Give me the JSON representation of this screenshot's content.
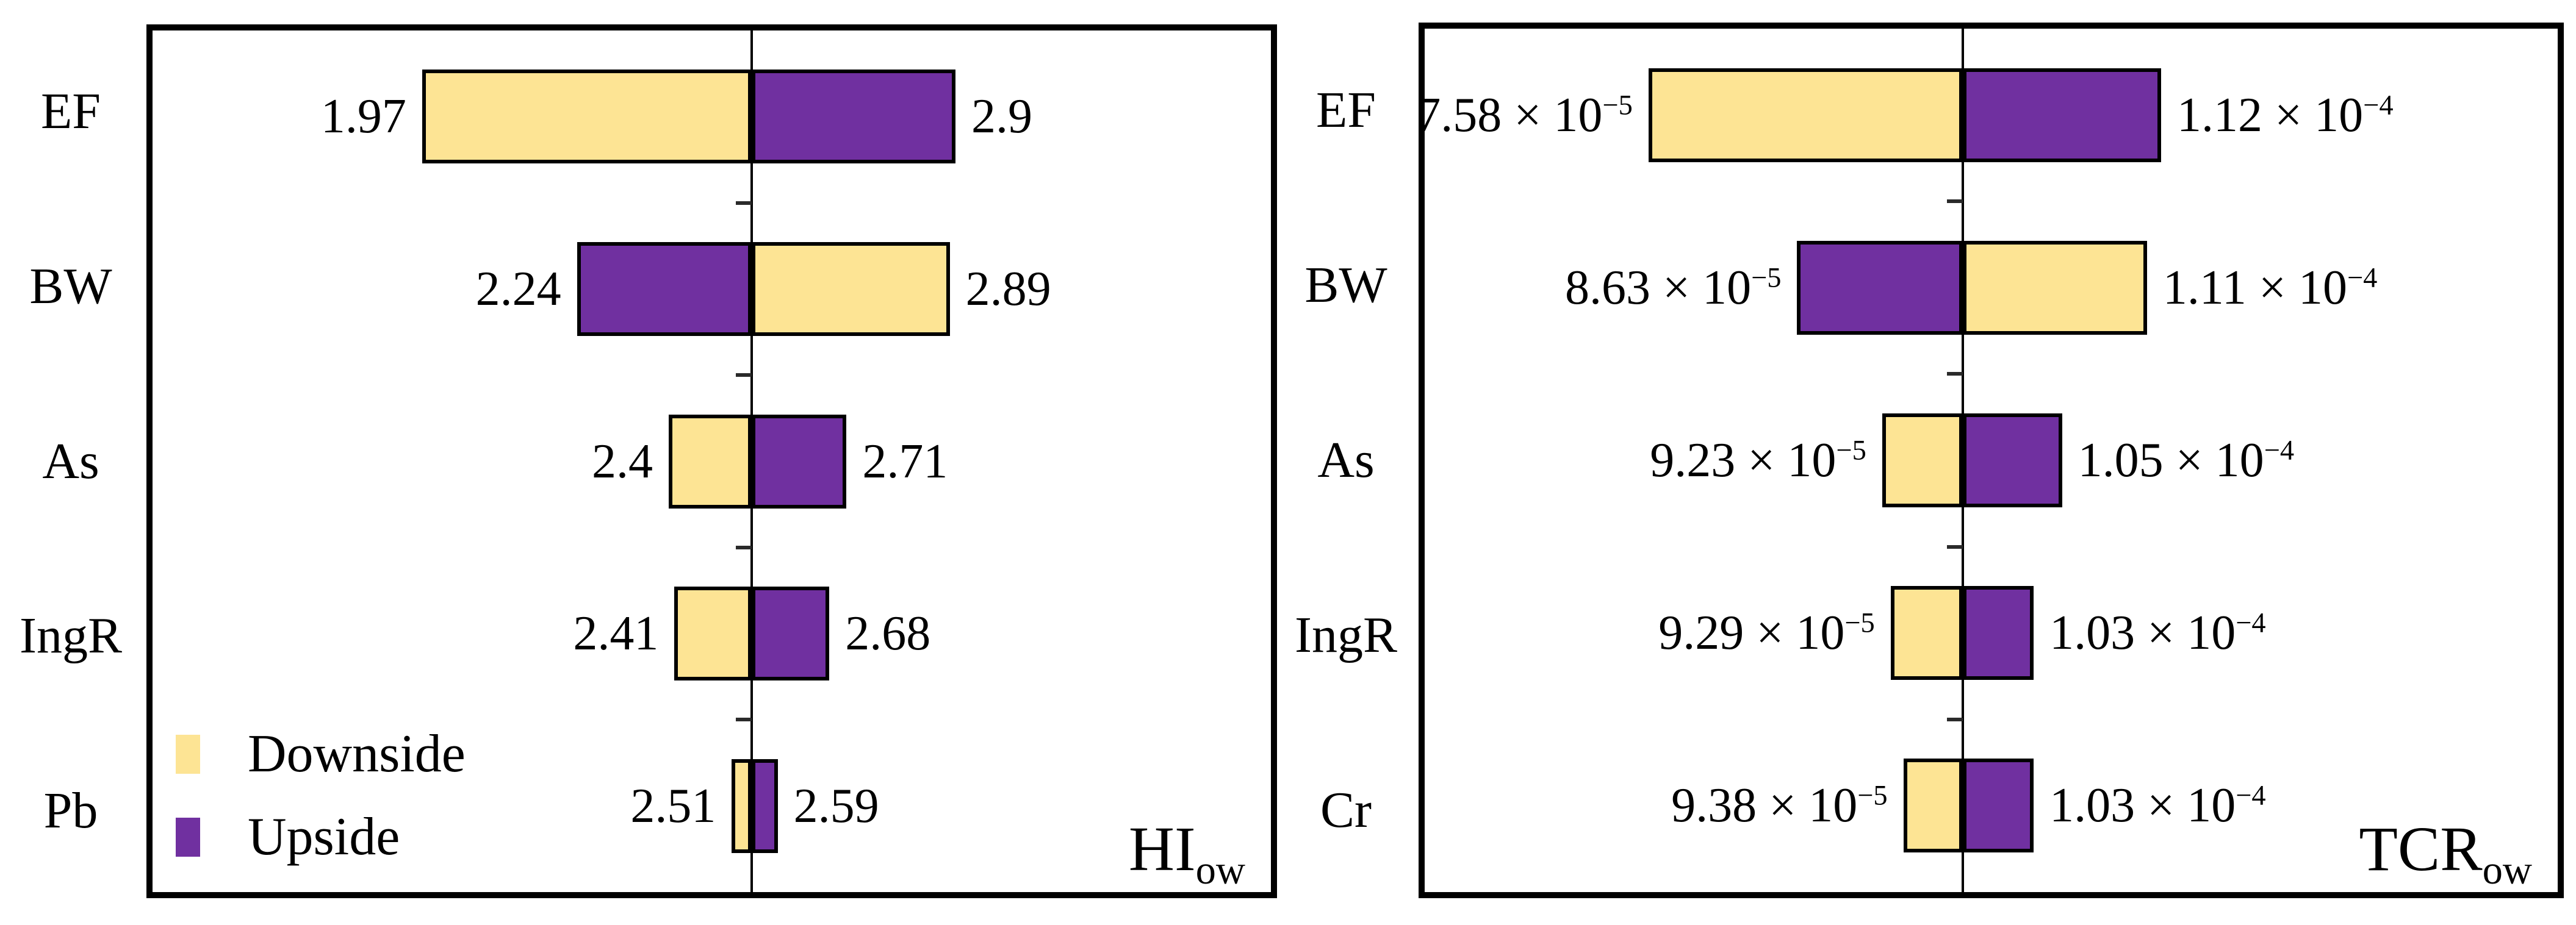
{
  "colors": {
    "downside": "#FDE494",
    "upside": "#7030A0",
    "bar_border": "#000000",
    "frame_border": "#000000",
    "axis": "#000000",
    "background": "#ffffff"
  },
  "chart_data": [
    {
      "type": "bar",
      "subtype": "tornado",
      "orientation": "horizontal",
      "title": "HI_ow",
      "corner_label": {
        "text": "HI",
        "sub": "ow"
      },
      "categories": [
        "EF",
        "BW",
        "As",
        "IngR",
        "Pb"
      ],
      "xlim": [
        1.5,
        3.45
      ],
      "base_value": 2.545,
      "grid": false,
      "legend": {
        "position": "lower-left",
        "entries": [
          {
            "label": "Downside",
            "color": "#FDE494"
          },
          {
            "label": "Upside",
            "color": "#7030A0"
          }
        ]
      },
      "rows": [
        {
          "category": "EF",
          "low": 1.97,
          "high": 2.9,
          "low_side": "downside",
          "high_side": "upside",
          "low_label": {
            "mant": "1.97",
            "exp": ""
          },
          "high_label": {
            "mant": "2.9",
            "exp": ""
          }
        },
        {
          "category": "BW",
          "low": 2.24,
          "high": 2.89,
          "low_side": "upside",
          "high_side": "downside",
          "low_label": {
            "mant": "2.24",
            "exp": ""
          },
          "high_label": {
            "mant": "2.89",
            "exp": ""
          }
        },
        {
          "category": "As",
          "low": 2.4,
          "high": 2.71,
          "low_side": "downside",
          "high_side": "upside",
          "low_label": {
            "mant": "2.4",
            "exp": ""
          },
          "high_label": {
            "mant": "2.71",
            "exp": ""
          }
        },
        {
          "category": "IngR",
          "low": 2.41,
          "high": 2.68,
          "low_side": "downside",
          "high_side": "upside",
          "low_label": {
            "mant": "2.41",
            "exp": ""
          },
          "high_label": {
            "mant": "2.68",
            "exp": ""
          }
        },
        {
          "category": "Pb",
          "low": 2.51,
          "high": 2.59,
          "low_side": "downside",
          "high_side": "upside",
          "low_label": {
            "mant": "2.51",
            "exp": ""
          },
          "high_label": {
            "mant": "2.59",
            "exp": ""
          }
        }
      ]
    },
    {
      "type": "bar",
      "subtype": "tornado",
      "orientation": "horizontal",
      "title": "TCR_ow",
      "corner_label": {
        "text": "TCR",
        "sub": "ow"
      },
      "categories": [
        "EF",
        "BW",
        "As",
        "IngR",
        "Cr"
      ],
      "xlim": [
        6e-05,
        0.00014
      ],
      "base_value": 9.8e-05,
      "grid": false,
      "rows": [
        {
          "category": "EF",
          "low": 7.58e-05,
          "high": 0.000112,
          "low_side": "downside",
          "high_side": "upside",
          "low_label": {
            "mant": "7.58 × 10",
            "exp": "−5"
          },
          "high_label": {
            "mant": "1.12 × 10",
            "exp": "−4"
          }
        },
        {
          "category": "BW",
          "low": 8.63e-05,
          "high": 0.000111,
          "low_side": "upside",
          "high_side": "downside",
          "low_label": {
            "mant": "8.63 × 10",
            "exp": "−5"
          },
          "high_label": {
            "mant": "1.11 × 10",
            "exp": "−4"
          }
        },
        {
          "category": "As",
          "low": 9.23e-05,
          "high": 0.000105,
          "low_side": "downside",
          "high_side": "upside",
          "low_label": {
            "mant": "9.23 × 10",
            "exp": "−5"
          },
          "high_label": {
            "mant": "1.05 × 10",
            "exp": "−4"
          }
        },
        {
          "category": "IngR",
          "low": 9.29e-05,
          "high": 0.000103,
          "low_side": "downside",
          "high_side": "upside",
          "low_label": {
            "mant": "9.29 × 10",
            "exp": "−5"
          },
          "high_label": {
            "mant": "1.03 × 10",
            "exp": "−4"
          }
        },
        {
          "category": "Cr",
          "low": 9.38e-05,
          "high": 0.000103,
          "low_side": "downside",
          "high_side": "upside",
          "low_label": {
            "mant": "9.38 × 10",
            "exp": "−5"
          },
          "high_label": {
            "mant": "1.03 × 10",
            "exp": "−4"
          }
        }
      ]
    }
  ]
}
